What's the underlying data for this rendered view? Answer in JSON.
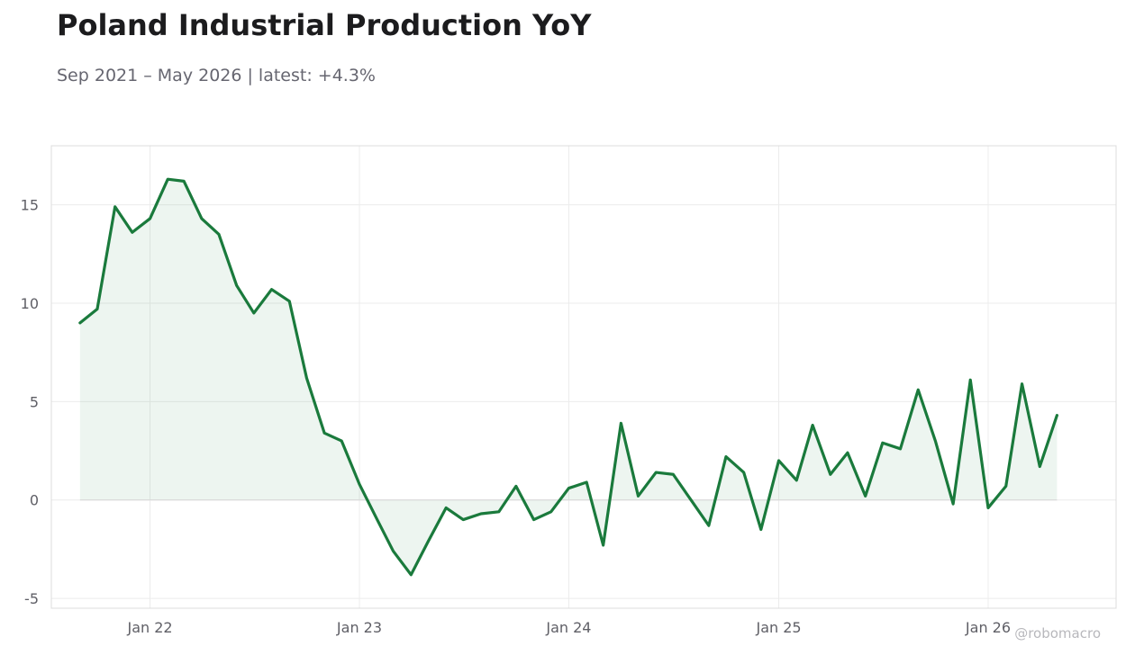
{
  "title": "Poland Industrial Production YoY",
  "subtitle": "Sep 2021 – May 2026 | latest: +4.3%",
  "watermark": "@robomacro",
  "colors": {
    "line": "#1a7a3c",
    "fill": "#1a7a3c",
    "grid": "#ececec",
    "frame": "#dcdcdc",
    "zero": "#d9d9d9"
  },
  "chart_data": {
    "type": "area",
    "title": "Poland Industrial Production YoY",
    "xlabel": "",
    "ylabel": "",
    "grid": true,
    "ylim": [
      -5.5,
      18
    ],
    "xlim": [
      "2021-07-13",
      "2026-08-12"
    ],
    "yticks": [
      15,
      10,
      5,
      0,
      -5
    ],
    "ytick_labels": [
      "15",
      "10",
      "5",
      "0",
      "-5"
    ],
    "xticks": [
      "2022-01-01",
      "2023-01-01",
      "2024-01-01",
      "2025-01-01",
      "2026-01-01"
    ],
    "xtick_labels": [
      "Jan 22",
      "Jan 23",
      "Jan 24",
      "Jan 25",
      "Jan 26"
    ],
    "series": [
      {
        "x": [
          "2021-09-01",
          "2021-10-01",
          "2021-11-01",
          "2021-12-01",
          "2022-01-01",
          "2022-02-01",
          "2022-03-01",
          "2022-04-01",
          "2022-05-01",
          "2022-06-01",
          "2022-07-01",
          "2022-08-01",
          "2022-09-01",
          "2022-10-01",
          "2022-11-01",
          "2022-12-01",
          "2023-01-01",
          "2023-02-01",
          "2023-03-01",
          "2023-04-01",
          "2023-05-01",
          "2023-06-01",
          "2023-07-01",
          "2023-08-01",
          "2023-09-01",
          "2023-10-01",
          "2023-11-01",
          "2023-12-01",
          "2024-01-01",
          "2024-02-01",
          "2024-03-01",
          "2024-04-01",
          "2024-05-01",
          "2024-06-01",
          "2024-07-01",
          "2024-08-01",
          "2024-09-01",
          "2024-10-01",
          "2024-11-01",
          "2024-12-01",
          "2025-01-01",
          "2025-02-01",
          "2025-03-01",
          "2025-04-01",
          "2025-05-01",
          "2025-06-01",
          "2025-07-01",
          "2025-08-01",
          "2025-09-01",
          "2025-10-01",
          "2025-11-01",
          "2025-12-01",
          "2026-01-01",
          "2026-02-01",
          "2026-03-01",
          "2026-04-01",
          "2026-05-01"
        ],
        "values": [
          9.0,
          9.7,
          14.9,
          13.6,
          14.3,
          16.3,
          16.2,
          14.3,
          13.5,
          10.9,
          9.5,
          10.7,
          10.1,
          6.2,
          3.4,
          3.0,
          0.8,
          -1.0,
          -2.6,
          -3.8,
          -2.1,
          -0.4,
          -1.0,
          -0.7,
          -0.6,
          0.7,
          -1.0,
          -0.6,
          0.6,
          0.9,
          -2.3,
          3.9,
          0.2,
          1.4,
          1.3,
          0.0,
          -1.3,
          2.2,
          1.4,
          -1.5,
          2.0,
          1.0,
          3.8,
          1.3,
          2.4,
          0.2,
          2.9,
          2.6,
          5.6,
          3.0,
          -0.2,
          6.1,
          -0.4,
          0.7,
          5.9,
          1.7,
          4.3
        ]
      }
    ]
  }
}
